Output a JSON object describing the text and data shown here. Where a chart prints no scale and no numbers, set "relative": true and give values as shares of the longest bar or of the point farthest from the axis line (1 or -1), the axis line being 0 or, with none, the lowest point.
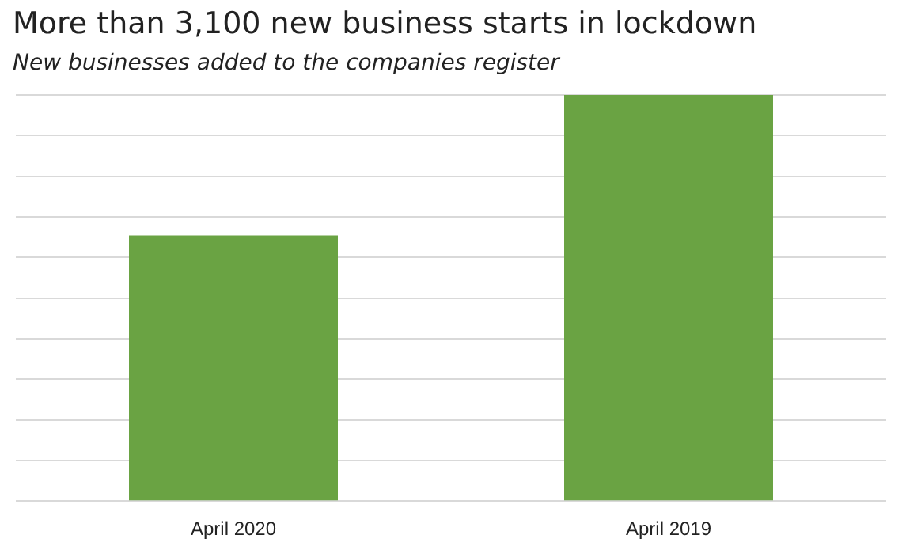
{
  "chart_data": {
    "type": "bar",
    "title": "More than 3,100 new business starts in lockdown",
    "subtitle": "New businesses added to the companies register",
    "categories": [
      "April 2020",
      "April 2019"
    ],
    "values": [
      0.654,
      1
    ],
    "color": "#6aa343",
    "relative": true,
    "grid": "y"
  }
}
